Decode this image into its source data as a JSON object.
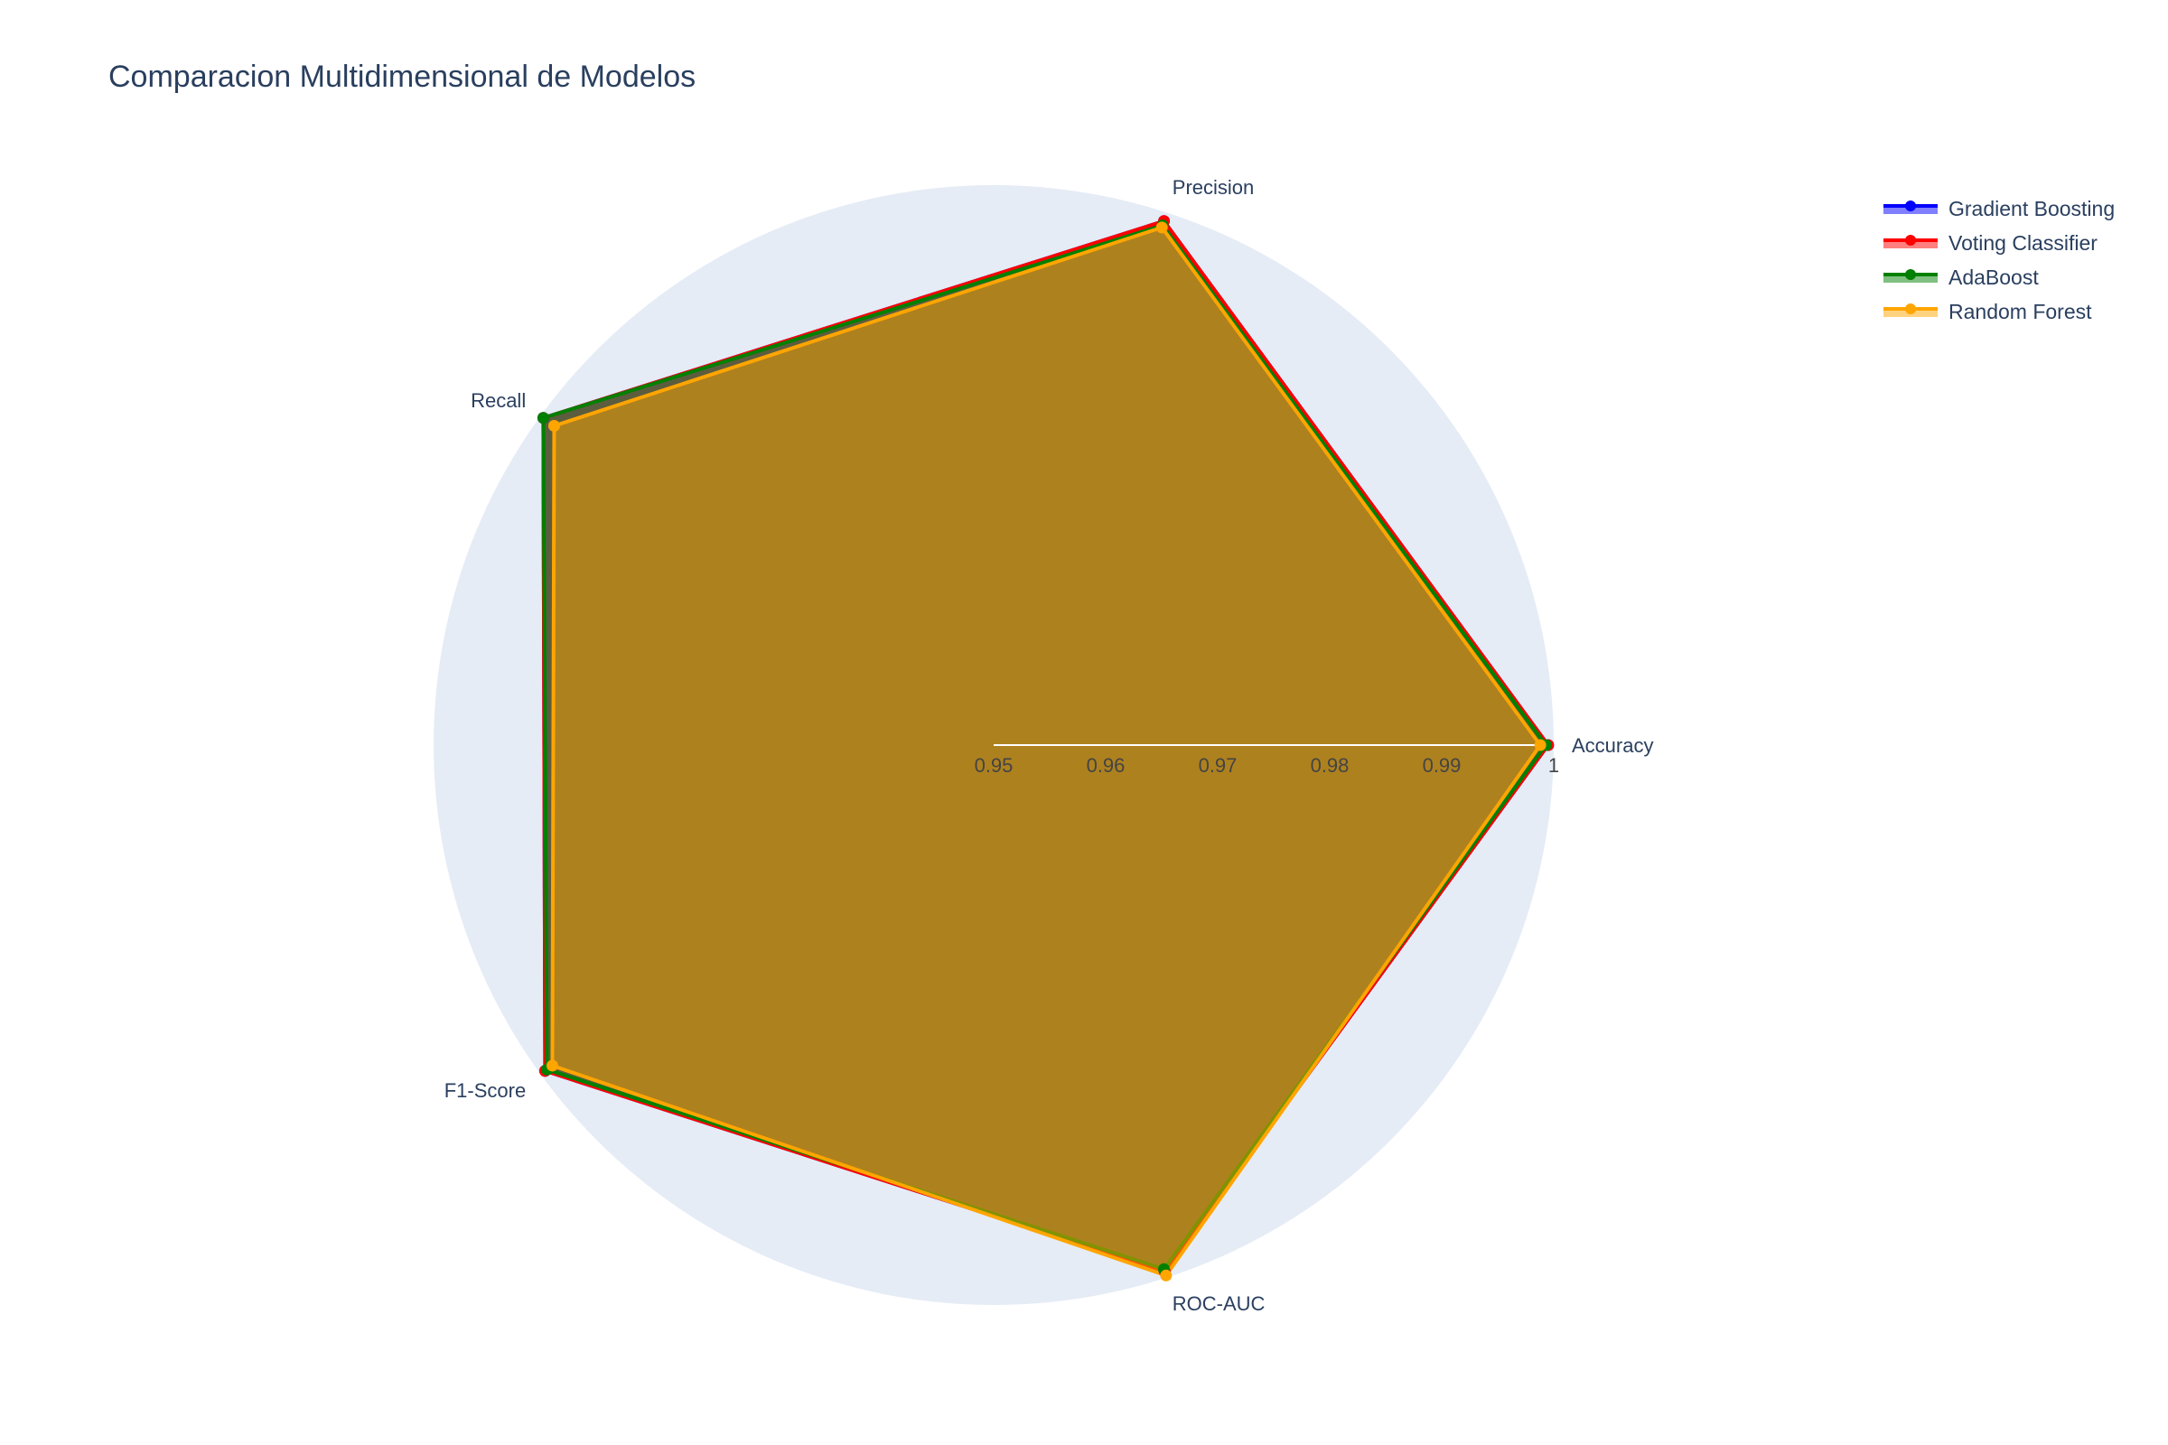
{
  "chart_data": {
    "type": "radar",
    "title": "Comparacion Multidimensional de Modelos",
    "categories": [
      "Accuracy",
      "Precision",
      "Recall",
      "F1-Score",
      "ROC-AUC"
    ],
    "radial_range": [
      0.95,
      1.0
    ],
    "radial_ticks": [
      "0.95",
      "0.96",
      "0.97",
      "0.98",
      "0.99",
      "1"
    ],
    "legend_position": "top-right",
    "series": [
      {
        "name": "Gradient Boosting",
        "color": "#0000ff",
        "values": [
          0.9995,
          0.9992,
          0.9997,
          0.9995,
          0.9994
        ]
      },
      {
        "name": "Voting Classifier",
        "color": "#ff0000",
        "values": [
          0.9995,
          0.9992,
          0.9997,
          0.9995,
          0.9994
        ]
      },
      {
        "name": "AdaBoost",
        "color": "#008000",
        "values": [
          0.9993,
          0.9988,
          0.9997,
          0.9993,
          0.9992
        ]
      },
      {
        "name": "Random Forest",
        "color": "#ffa500",
        "values": [
          0.9988,
          0.9986,
          0.9985,
          0.9987,
          0.9998
        ]
      }
    ]
  }
}
